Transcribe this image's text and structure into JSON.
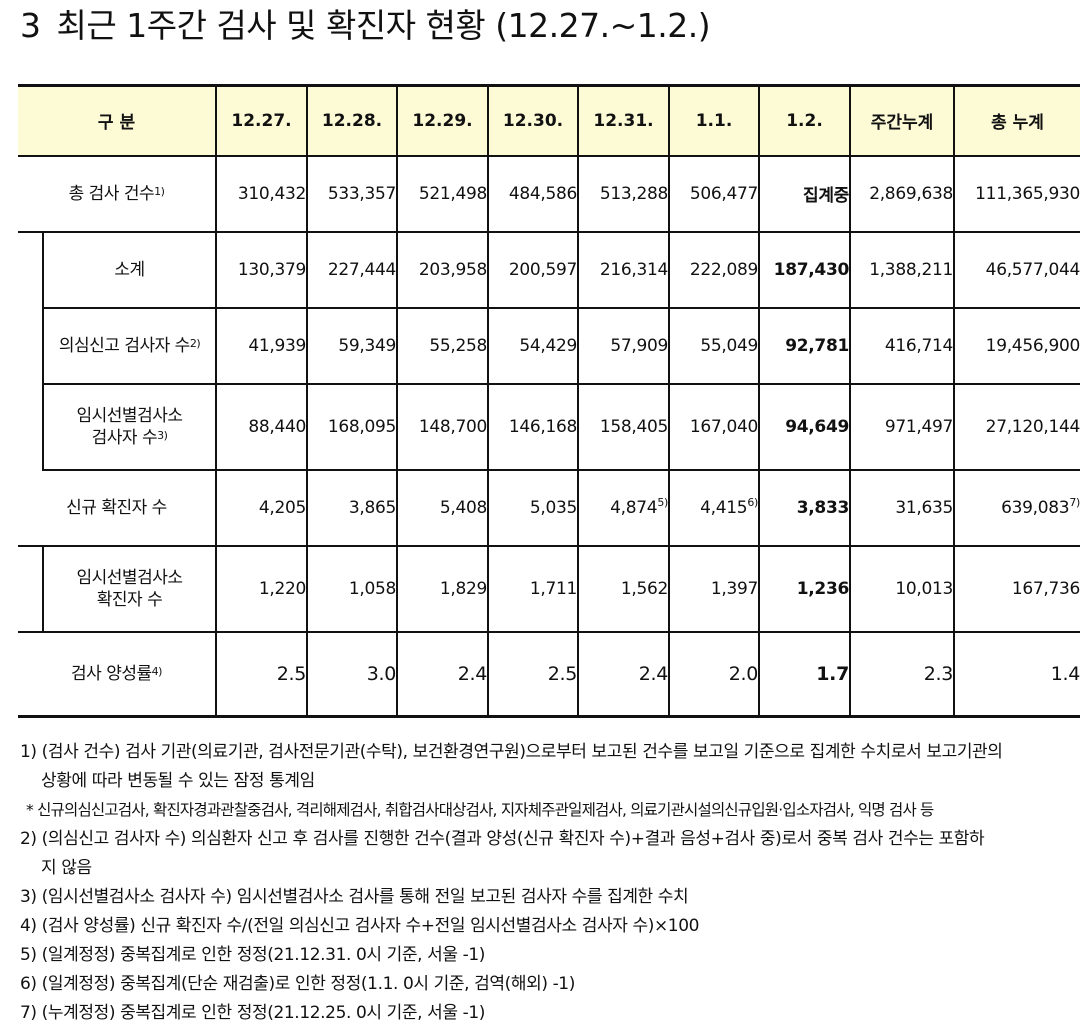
{
  "title": {
    "number": "3",
    "text": "최근 1주간 검사 및 확진자 현황 (12.27.~1.2.)"
  },
  "table": {
    "headers": [
      "구 분",
      "12.27.",
      "12.28.",
      "12.29.",
      "12.30.",
      "12.31.",
      "1.1.",
      "1.2.",
      "주간누계",
      "총 누계"
    ],
    "rows": [
      {
        "label": "총 검사 건수",
        "sup": "1)",
        "values": [
          "310,432",
          "533,357",
          "521,498",
          "484,586",
          "513,288",
          "506,477",
          "집계중",
          "2,869,638",
          "111,365,930"
        ]
      },
      {
        "label": "소계",
        "sup": "",
        "values": [
          "130,379",
          "227,444",
          "203,958",
          "200,597",
          "216,314",
          "222,089",
          "187,430",
          "1,388,211",
          "46,577,044"
        ]
      },
      {
        "label": "의심신고 검사자 수",
        "sup": "2)",
        "values": [
          "41,939",
          "59,349",
          "55,258",
          "54,429",
          "57,909",
          "55,049",
          "92,781",
          "416,714",
          "19,456,900"
        ]
      },
      {
        "label_line1": "임시선별검사소",
        "label_line2": "검사자 수",
        "sup": "3)",
        "values": [
          "88,440",
          "168,095",
          "148,700",
          "146,168",
          "158,405",
          "167,040",
          "94,649",
          "971,497",
          "27,120,144"
        ]
      },
      {
        "label": "신규 확진자 수",
        "sup": "",
        "values": [
          "4,205",
          "3,865",
          "5,408",
          "5,035",
          "4,874",
          "4,415",
          "3,833",
          "31,635",
          "639,083"
        ],
        "value_sups": {
          "4": "5)",
          "5": "6)",
          "8": "7)"
        }
      },
      {
        "label_line1": "임시선별검사소",
        "label_line2": "확진자 수",
        "sup": "",
        "values": [
          "1,220",
          "1,058",
          "1,829",
          "1,711",
          "1,562",
          "1,397",
          "1,236",
          "10,013",
          "167,736"
        ]
      },
      {
        "label": "검사 양성률",
        "sup": "4)",
        "values": [
          "2.5",
          "3.0",
          "2.4",
          "2.5",
          "2.4",
          "2.0",
          "1.7",
          "2.3",
          "1.4"
        ]
      }
    ]
  },
  "notes": [
    "1) (검사 건수) 검사 기관(의료기관, 검사전문기관(수탁), 보건환경연구원)으로부터 보고된 건수를 보고일 기준으로 집계한 수치로서 보고기관의",
    "상황에 따라 변동될 수 있는 잠정 통계임",
    "* 신규의심신고검사, 확진자경과관찰중검사, 격리해제검사, 취합검사대상검사, 지자체주관일제검사, 의료기관시설의신규입원·입소자검사, 익명 검사 등",
    "2) (의심신고 검사자 수) 의심환자 신고 후 검사를 진행한 건수(결과 양성(신규 확진자 수)+결과 음성+검사 중)로서 중복 검사 건수는 포함하",
    "지 않음",
    "3) (임시선별검사소 검사자 수) 임시선별검사소 검사를 통해 전일 보고된 검사자 수를 집계한 수치",
    "4) (검사 양성률) 신규 확진자 수/(전일 의심신고 검사자 수+전일 임시선별검사소 검사자 수)×100",
    "5) (일계정정) 중복집계로 인한 정정(21.12.31. 0시 기준, 서울 -1)",
    "6) (일계정정) 중복집계(단순 재검출)로 인한 정정(1.1. 0시 기준, 검역(해외) -1)",
    "7) (누계정정) 중복집계로 인한 정정(21.12.25. 0시 기준, 서울 -1)"
  ]
}
